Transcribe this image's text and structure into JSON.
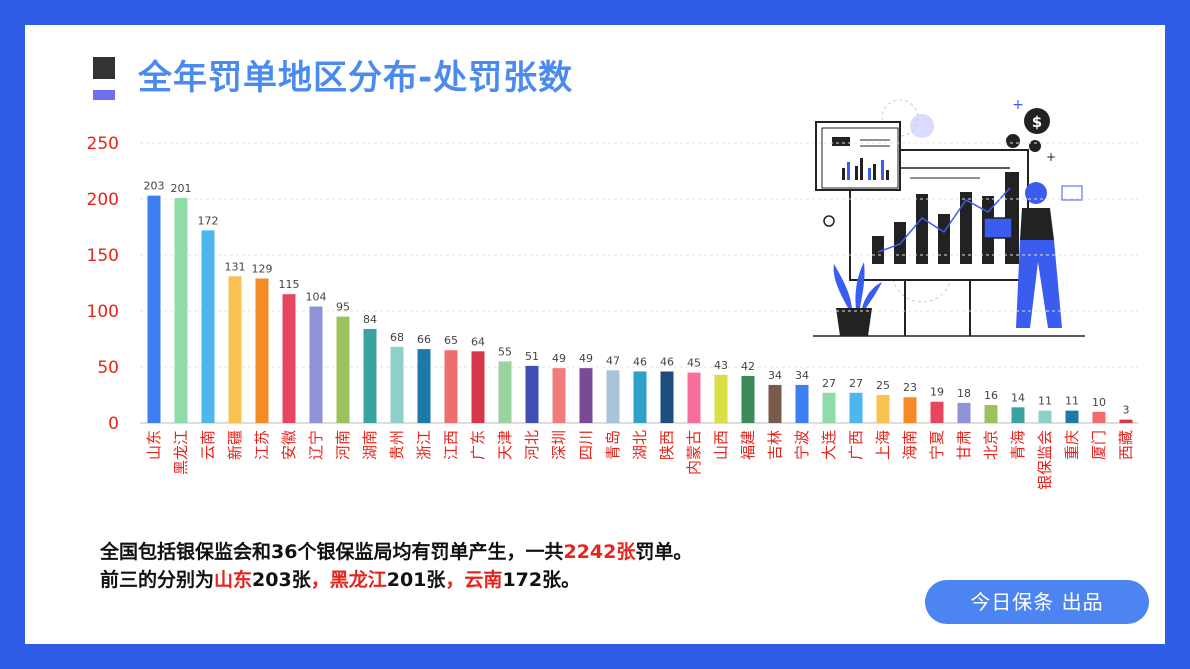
{
  "title": "全年罚单地区分布-处罚张数",
  "chart_data": {
    "type": "bar",
    "title": "全年罚单地区分布-处罚张数",
    "categories": [
      "山东",
      "黑龙江",
      "云南",
      "新疆",
      "江苏",
      "安徽",
      "辽宁",
      "河南",
      "湖南",
      "贵州",
      "浙江",
      "江西",
      "广东",
      "天津",
      "河北",
      "深圳",
      "四川",
      "青岛",
      "湖北",
      "陕西",
      "内蒙古",
      "山西",
      "福建",
      "吉林",
      "宁波",
      "大连",
      "广西",
      "上海",
      "海南",
      "宁夏",
      "甘肃",
      "北京",
      "青海",
      "银保监会",
      "重庆",
      "厦门",
      "西藏"
    ],
    "values": [
      203,
      201,
      172,
      131,
      129,
      115,
      104,
      95,
      84,
      68,
      66,
      65,
      64,
      55,
      51,
      49,
      49,
      47,
      46,
      46,
      45,
      43,
      42,
      34,
      34,
      27,
      27,
      25,
      23,
      19,
      18,
      16,
      14,
      11,
      11,
      10,
      3
    ],
    "colors": [
      "#3d7ef2",
      "#8fdca8",
      "#4eb6ee",
      "#f9c351",
      "#f58b26",
      "#e6465e",
      "#8f92d6",
      "#9cc25e",
      "#3aa29f",
      "#8fcfca",
      "#1f79a6",
      "#f06d6d",
      "#d6384a",
      "#9ad2a0",
      "#3f4fb5",
      "#f27b7b",
      "#7a4a99",
      "#a8c4d8",
      "#2ea1c9",
      "#1e4e7c",
      "#f66e9c",
      "#d8df45",
      "#3a8a5a",
      "#7a5a4a",
      "#3d7ef2",
      "#8fdca8",
      "#4eb6ee",
      "#f9c351",
      "#f58b26",
      "#e6465e",
      "#8f92d6",
      "#9cc25e",
      "#3aa29f",
      "#8fcfca",
      "#1f79a6",
      "#f06d6d",
      "#d6384a"
    ],
    "ylim": [
      0,
      250
    ],
    "yticks": [
      0,
      50,
      100,
      150,
      200,
      250
    ],
    "xlabel": "",
    "ylabel": "",
    "grid": true,
    "tick_color": "#e8231c"
  },
  "caption": {
    "line1_prefix": "全国包括银保监会和36个银保监局均有罚单产生，一共",
    "line1_total": "2242张",
    "line1_suffix": "罚单。",
    "line2_prefix": "前三的分别为",
    "top1_name": "山东",
    "top1_value": "203张",
    "top2_name": "黑龙江",
    "top2_value": "201张",
    "top3_name": "云南",
    "top3_value": "172张。",
    "sep": "，"
  },
  "badge": "今日保条  出品"
}
